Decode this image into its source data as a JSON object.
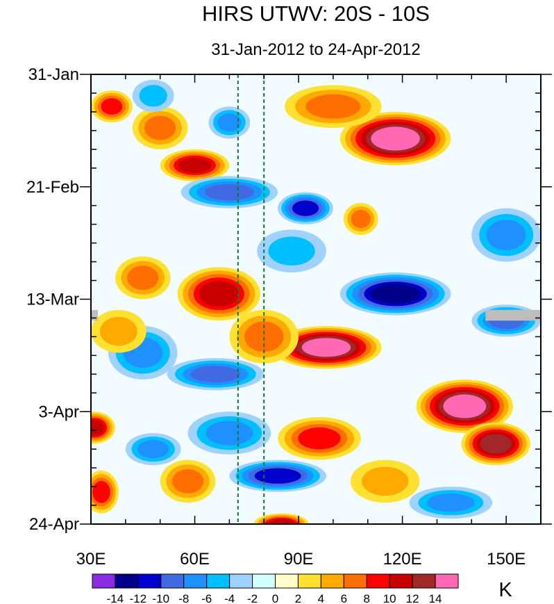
{
  "chart_data": {
    "type": "heatmap",
    "title": "HIRS UTWV: 20S - 10S",
    "subtitle": "31-Jan-2012 to 24-Apr-2012",
    "units": "K",
    "x_axis": {
      "range": [
        30,
        160
      ],
      "ticks": [
        30,
        60,
        90,
        120,
        150
      ],
      "tick_labels": [
        "30E",
        "60E",
        "90E",
        "120E",
        "150E"
      ]
    },
    "y_axis": {
      "range_days": [
        0,
        84
      ],
      "ticks": [
        0,
        21,
        42,
        63,
        84
      ],
      "tick_labels": [
        "31-Jan",
        "21-Feb",
        "13-Mar",
        "3-Apr",
        "24-Apr"
      ]
    },
    "reference_lines_lon": [
      72.5,
      80
    ],
    "colorbar": {
      "levels": [
        -14,
        -12,
        -10,
        -8,
        -6,
        -4,
        -2,
        0,
        2,
        4,
        6,
        8,
        10,
        12,
        14
      ],
      "labels": [
        "-14",
        "-12",
        "-10",
        "-8",
        "-6",
        "-4",
        "-2",
        "0",
        "2",
        "4",
        "6",
        "8",
        "10",
        "12",
        "14"
      ],
      "colors": [
        "#8a2be2",
        "#00008b",
        "#0000cd",
        "#4169e1",
        "#1e90ff",
        "#00bfff",
        "#a0d2ff",
        "#d2ffff",
        "#ffffc8",
        "#ffe132",
        "#ffaa00",
        "#ff6e00",
        "#ff0000",
        "#c80000",
        "#a02828",
        "#ff69b4"
      ]
    },
    "features": [
      {
        "lon": 36,
        "day": 6,
        "value": 9,
        "r_lon": 6,
        "r_day": 3
      },
      {
        "lon": 50,
        "day": 10,
        "value": 6,
        "r_lon": 8,
        "r_day": 4
      },
      {
        "lon": 60,
        "day": 17,
        "value": 11,
        "r_lon": 10,
        "r_day": 3
      },
      {
        "lon": 48,
        "day": 4,
        "value": -4,
        "r_lon": 6,
        "r_day": 3
      },
      {
        "lon": 70,
        "day": 9,
        "value": -7,
        "r_lon": 6,
        "r_day": 3
      },
      {
        "lon": 118,
        "day": 12,
        "value": 15,
        "r_lon": 16,
        "r_day": 5
      },
      {
        "lon": 100,
        "day": 6,
        "value": 7,
        "r_lon": 14,
        "r_day": 4
      },
      {
        "lon": 70,
        "day": 22,
        "value": -9,
        "r_lon": 14,
        "r_day": 3
      },
      {
        "lon": 92,
        "day": 25,
        "value": -11,
        "r_lon": 8,
        "r_day": 3
      },
      {
        "lon": 108,
        "day": 27,
        "value": 7,
        "r_lon": 5,
        "r_day": 3
      },
      {
        "lon": 150,
        "day": 30,
        "value": -6,
        "r_lon": 10,
        "r_day": 5
      },
      {
        "lon": 67,
        "day": 41,
        "value": 11,
        "r_lon": 12,
        "r_day": 5
      },
      {
        "lon": 45,
        "day": 38,
        "value": 6,
        "r_lon": 8,
        "r_day": 4
      },
      {
        "lon": 88,
        "day": 33,
        "value": -5,
        "r_lon": 10,
        "r_day": 4
      },
      {
        "lon": 118,
        "day": 41,
        "value": -13,
        "r_lon": 16,
        "r_day": 4
      },
      {
        "lon": 150,
        "day": 46,
        "value": -9,
        "r_lon": 10,
        "r_day": 3
      },
      {
        "lon": 98,
        "day": 51,
        "value": 14,
        "r_lon": 16,
        "r_day": 4
      },
      {
        "lon": 80,
        "day": 49,
        "value": 6,
        "r_lon": 10,
        "r_day": 5
      },
      {
        "lon": 45,
        "day": 52,
        "value": -6,
        "r_lon": 10,
        "r_day": 5
      },
      {
        "lon": 38,
        "day": 48,
        "value": 5,
        "r_lon": 8,
        "r_day": 4
      },
      {
        "lon": 66,
        "day": 56,
        "value": -8,
        "r_lon": 14,
        "r_day": 3
      },
      {
        "lon": 138,
        "day": 62,
        "value": 14,
        "r_lon": 14,
        "r_day": 5
      },
      {
        "lon": 147,
        "day": 69,
        "value": 13,
        "r_lon": 10,
        "r_day": 4
      },
      {
        "lon": 31,
        "day": 66,
        "value": 10,
        "r_lon": 6,
        "r_day": 3
      },
      {
        "lon": 96,
        "day": 68,
        "value": 8,
        "r_lon": 12,
        "r_day": 4
      },
      {
        "lon": 70,
        "day": 67,
        "value": -6,
        "r_lon": 12,
        "r_day": 4
      },
      {
        "lon": 84,
        "day": 75,
        "value": -10,
        "r_lon": 14,
        "r_day": 3
      },
      {
        "lon": 58,
        "day": 76,
        "value": 7,
        "r_lon": 8,
        "r_day": 4
      },
      {
        "lon": 33,
        "day": 78,
        "value": 8,
        "r_lon": 5,
        "r_day": 4
      },
      {
        "lon": 115,
        "day": 76,
        "value": 5,
        "r_lon": 10,
        "r_day": 4
      },
      {
        "lon": 134,
        "day": 80,
        "value": -6,
        "r_lon": 12,
        "r_day": 3
      },
      {
        "lon": 85,
        "day": 84,
        "value": 10,
        "r_lon": 8,
        "r_day": 2
      },
      {
        "lon": 48,
        "day": 70,
        "value": -6,
        "r_lon": 8,
        "r_day": 3
      }
    ],
    "missing_data": [
      {
        "lon_start": 144,
        "lon_end": 160,
        "day_start": 44,
        "day_end": 46
      },
      {
        "lon_start": 30,
        "lon_end": 32,
        "day_start": 44,
        "day_end": 46
      }
    ]
  }
}
